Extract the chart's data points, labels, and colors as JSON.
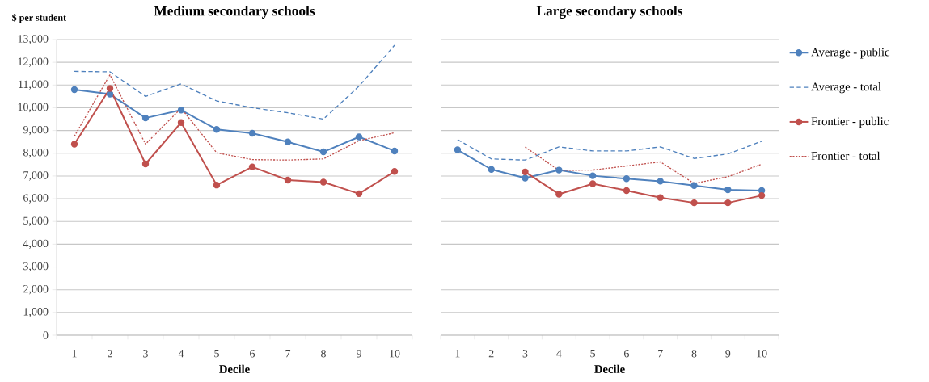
{
  "chart_data": [
    {
      "type": "line",
      "title": "Medium secondary schools",
      "xlabel": "Decile",
      "ylabel": "$ per student",
      "categories": [
        "1",
        "2",
        "3",
        "4",
        "5",
        "6",
        "7",
        "8",
        "9",
        "10"
      ],
      "ylim": [
        0,
        13000
      ],
      "yticks": [
        0,
        {
          "value": 1000,
          "label": "1,000"
        },
        {
          "value": 2000,
          "label": "2,000"
        },
        {
          "value": 3000,
          "label": "3,000"
        },
        {
          "value": 4000,
          "label": "4,000"
        },
        {
          "value": 5000,
          "label": "5,000"
        },
        {
          "value": 6000,
          "label": "6,000"
        },
        {
          "value": 7000,
          "label": "7,000"
        },
        {
          "value": 8000,
          "label": "8,000"
        },
        {
          "value": 9000,
          "label": "9,000"
        },
        {
          "value": 10000,
          "label": "10,000"
        },
        {
          "value": 11000,
          "label": "11,000"
        },
        {
          "value": 12000,
          "label": "12,000"
        },
        {
          "value": 13000,
          "label": "13,000"
        }
      ],
      "grid": "y",
      "series": [
        {
          "color": "#4f81bd",
          "marker": "circle",
          "line_style": "solid",
          "values": [
            10800,
            10600,
            9550,
            9900,
            9050,
            8880,
            8500,
            8060,
            8720,
            8100
          ]
        },
        {
          "color": "#4f81bd",
          "marker": "none",
          "line_style": "dashed",
          "values": [
            11600,
            11580,
            10500,
            11050,
            10300,
            10000,
            9780,
            9500,
            10950,
            12750
          ]
        },
        {
          "color": "#c0504d",
          "marker": "circle",
          "line_style": "solid",
          "values": [
            8400,
            10850,
            7530,
            9350,
            6600,
            7400,
            6820,
            6730,
            6220,
            7200
          ]
        },
        {
          "color": "#c0504d",
          "marker": "none",
          "line_style": "dotted",
          "values": [
            8750,
            11450,
            8400,
            9980,
            8020,
            7720,
            7700,
            7750,
            8550,
            8900
          ]
        }
      ]
    },
    {
      "type": "line",
      "title": "Large secondary schools",
      "xlabel": "Decile",
      "categories": [
        "1",
        "2",
        "3",
        "4",
        "5",
        "6",
        "7",
        "8",
        "9",
        "10"
      ],
      "ylim": [
        0,
        13000
      ],
      "yticks": [
        0,
        1000,
        2000,
        3000,
        4000,
        5000,
        6000,
        7000,
        8000,
        9000,
        10000,
        11000,
        12000,
        13000
      ],
      "grid": "y",
      "tick_labels": "x",
      "legend": "right",
      "series": [
        {
          "name": "Average - public",
          "color": "#4f81bd",
          "marker": "circle",
          "line_style": "solid",
          "values": [
            8150,
            7290,
            6910,
            7260,
            7010,
            6880,
            6770,
            6580,
            6390,
            6360
          ]
        },
        {
          "name": "Average - total",
          "color": "#4f81bd",
          "marker": "none",
          "line_style": "dashed",
          "values": [
            8600,
            7750,
            7700,
            8280,
            8100,
            8100,
            8280,
            7770,
            7970,
            8530
          ]
        },
        {
          "name": "Frontier - public",
          "color": "#c0504d",
          "marker": "circle",
          "line_style": "solid",
          "values": [
            null,
            null,
            7180,
            6200,
            6660,
            6360,
            6050,
            5820,
            5820,
            6140
          ]
        },
        {
          "name": "Frontier - total",
          "color": "#c0504d",
          "marker": "none",
          "line_style": "dotted",
          "values": [
            null,
            null,
            8270,
            7250,
            7260,
            7440,
            7620,
            6670,
            6970,
            7520
          ]
        }
      ]
    }
  ]
}
